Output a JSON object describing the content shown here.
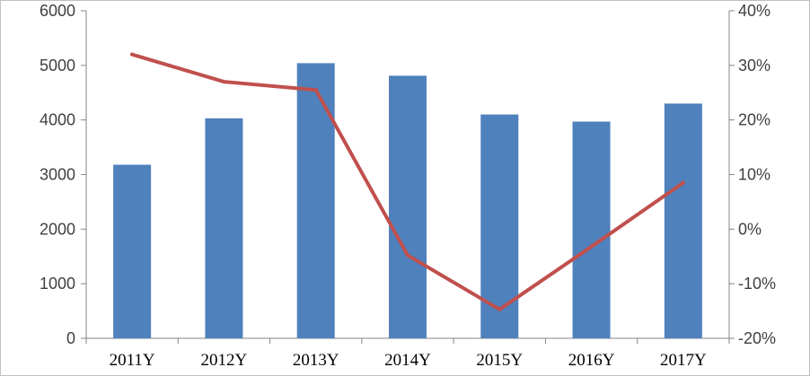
{
  "chart_data": {
    "type": "bar",
    "title": "",
    "categories": [
      "2011Y",
      "2012Y",
      "2013Y",
      "2014Y",
      "2015Y",
      "2016Y",
      "2017Y"
    ],
    "series": [
      {
        "type": "bar",
        "axis": "left",
        "color": "#4f81bd",
        "values": [
          3180,
          4030,
          5040,
          4810,
          4100,
          3970,
          4300
        ]
      },
      {
        "type": "line",
        "axis": "right",
        "color": "#c0504d",
        "values": [
          0.32,
          0.27,
          0.255,
          -0.048,
          -0.147,
          -0.032,
          0.085
        ]
      }
    ],
    "left_axis": {
      "min": 0,
      "max": 6000,
      "ticks": [
        0,
        1000,
        2000,
        3000,
        4000,
        5000,
        6000
      ],
      "tick_labels": [
        "0",
        "1000",
        "2000",
        "3000",
        "4000",
        "5000",
        "6000"
      ]
    },
    "right_axis": {
      "min": -0.2,
      "max": 0.4,
      "ticks": [
        -0.2,
        -0.1,
        0,
        0.1,
        0.2,
        0.3,
        0.4
      ],
      "tick_labels": [
        "-20%",
        "-10%",
        "0%",
        "10%",
        "20%",
        "30%",
        "40%"
      ]
    },
    "grid": false,
    "legend": "none"
  }
}
